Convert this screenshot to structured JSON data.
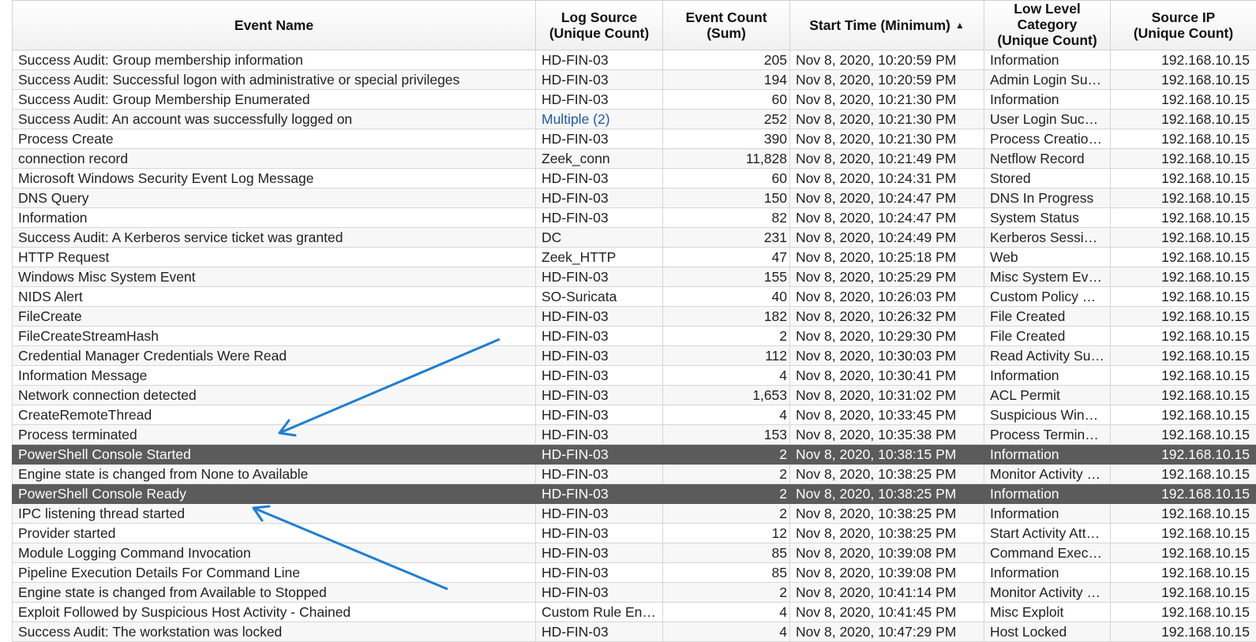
{
  "table": {
    "columns": [
      {
        "key": "event_name",
        "line1": "Event Name",
        "line2": ""
      },
      {
        "key": "log_source",
        "line1": "Log Source",
        "line2": "(Unique Count)"
      },
      {
        "key": "event_count",
        "line1": "Event Count",
        "line2": "(Sum)"
      },
      {
        "key": "start_time",
        "line1": "Start Time (Minimum)",
        "line2": "",
        "sort": "ascending"
      },
      {
        "key": "category",
        "line1": "Low Level",
        "line2": "Category",
        "line3": "(Unique Count)"
      },
      {
        "key": "source_ip",
        "line1": "Source IP",
        "line2": "(Unique Count)"
      }
    ],
    "sort_indicator": "▲",
    "rows": [
      {
        "event_name": "Success Audit: Group membership information",
        "log_source": "HD-FIN-03",
        "event_count": "205",
        "start_time": "Nov 8, 2020, 10:20:59 PM",
        "category": "Information",
        "source_ip": "192.168.10.15"
      },
      {
        "event_name": "Success Audit: Successful logon with administrative or special privileges",
        "log_source": "HD-FIN-03",
        "event_count": "194",
        "start_time": "Nov 8, 2020, 10:20:59 PM",
        "category": "Admin Login Su…",
        "source_ip": "192.168.10.15"
      },
      {
        "event_name": "Success Audit: Group Membership Enumerated",
        "log_source": "HD-FIN-03",
        "event_count": "60",
        "start_time": "Nov 8, 2020, 10:21:30 PM",
        "category": "Information",
        "source_ip": "192.168.10.15"
      },
      {
        "event_name": "Success Audit: An account was successfully logged on",
        "log_source": "Multiple (2)",
        "log_source_link": true,
        "event_count": "252",
        "start_time": "Nov 8, 2020, 10:21:30 PM",
        "category": "User Login Succ…",
        "source_ip": "192.168.10.15"
      },
      {
        "event_name": "Process Create",
        "log_source": "HD-FIN-03",
        "event_count": "390",
        "start_time": "Nov 8, 2020, 10:21:30 PM",
        "category": "Process Creatio…",
        "source_ip": "192.168.10.15"
      },
      {
        "event_name": "connection record",
        "log_source": "Zeek_conn",
        "event_count": "11,828",
        "start_time": "Nov 8, 2020, 10:21:49 PM",
        "category": "Netflow Record",
        "source_ip": "192.168.10.15"
      },
      {
        "event_name": "Microsoft Windows Security Event Log Message",
        "log_source": "HD-FIN-03",
        "event_count": "60",
        "start_time": "Nov 8, 2020, 10:24:31 PM",
        "category": "Stored",
        "source_ip": "192.168.10.15"
      },
      {
        "event_name": "DNS Query",
        "log_source": "HD-FIN-03",
        "event_count": "150",
        "start_time": "Nov 8, 2020, 10:24:47 PM",
        "category": "DNS In Progress",
        "source_ip": "192.168.10.15"
      },
      {
        "event_name": "Information",
        "log_source": "HD-FIN-03",
        "event_count": "82",
        "start_time": "Nov 8, 2020, 10:24:47 PM",
        "category": "System Status",
        "source_ip": "192.168.10.15"
      },
      {
        "event_name": "Success Audit: A Kerberos service ticket was granted",
        "log_source": "DC",
        "event_count": "231",
        "start_time": "Nov 8, 2020, 10:24:49 PM",
        "category": "Kerberos Sessio…",
        "source_ip": "192.168.10.15"
      },
      {
        "event_name": "HTTP Request",
        "log_source": "Zeek_HTTP",
        "event_count": "47",
        "start_time": "Nov 8, 2020, 10:25:18 PM",
        "category": "Web",
        "source_ip": "192.168.10.15"
      },
      {
        "event_name": "Windows Misc System Event",
        "log_source": "HD-FIN-03",
        "event_count": "155",
        "start_time": "Nov 8, 2020, 10:25:29 PM",
        "category": "Misc System Ev…",
        "source_ip": "192.168.10.15"
      },
      {
        "event_name": "NIDS Alert",
        "log_source": "SO-Suricata",
        "event_count": "40",
        "start_time": "Nov 8, 2020, 10:26:03 PM",
        "category": "Custom Policy H…",
        "source_ip": "192.168.10.15"
      },
      {
        "event_name": "FileCreate",
        "log_source": "HD-FIN-03",
        "event_count": "182",
        "start_time": "Nov 8, 2020, 10:26:32 PM",
        "category": "File Created",
        "source_ip": "192.168.10.15"
      },
      {
        "event_name": "FileCreateStreamHash",
        "log_source": "HD-FIN-03",
        "event_count": "2",
        "start_time": "Nov 8, 2020, 10:29:30 PM",
        "category": "File Created",
        "source_ip": "192.168.10.15"
      },
      {
        "event_name": "Credential Manager Credentials Were Read",
        "log_source": "HD-FIN-03",
        "event_count": "112",
        "start_time": "Nov 8, 2020, 10:30:03 PM",
        "category": "Read Activity Su…",
        "source_ip": "192.168.10.15"
      },
      {
        "event_name": "Information Message",
        "log_source": "HD-FIN-03",
        "event_count": "4",
        "start_time": "Nov 8, 2020, 10:30:41 PM",
        "category": "Information",
        "source_ip": "192.168.10.15"
      },
      {
        "event_name": "Network connection detected",
        "log_source": "HD-FIN-03",
        "event_count": "1,653",
        "start_time": "Nov 8, 2020, 10:31:02 PM",
        "category": "ACL Permit",
        "source_ip": "192.168.10.15"
      },
      {
        "event_name": "CreateRemoteThread",
        "log_source": "HD-FIN-03",
        "event_count": "4",
        "start_time": "Nov 8, 2020, 10:33:45 PM",
        "category": "Suspicious Wind…",
        "source_ip": "192.168.10.15"
      },
      {
        "event_name": "Process terminated",
        "log_source": "HD-FIN-03",
        "event_count": "153",
        "start_time": "Nov 8, 2020, 10:35:38 PM",
        "category": "Process Termin…",
        "source_ip": "192.168.10.15"
      },
      {
        "event_name": "PowerShell Console Started",
        "log_source": "HD-FIN-03",
        "event_count": "2",
        "start_time": "Nov 8, 2020, 10:38:15 PM",
        "category": "Information",
        "source_ip": "192.168.10.15",
        "selected": true
      },
      {
        "event_name": "Engine state is changed from None to Available",
        "log_source": "HD-FIN-03",
        "event_count": "2",
        "start_time": "Nov 8, 2020, 10:38:25 PM",
        "category": "Monitor Activity …",
        "source_ip": "192.168.10.15"
      },
      {
        "event_name": "PowerShell Console Ready",
        "log_source": "HD-FIN-03",
        "event_count": "2",
        "start_time": "Nov 8, 2020, 10:38:25 PM",
        "category": "Information",
        "source_ip": "192.168.10.15",
        "selected": true
      },
      {
        "event_name": "IPC listening thread started",
        "log_source": "HD-FIN-03",
        "event_count": "2",
        "start_time": "Nov 8, 2020, 10:38:25 PM",
        "category": "Information",
        "source_ip": "192.168.10.15"
      },
      {
        "event_name": "Provider started",
        "log_source": "HD-FIN-03",
        "event_count": "12",
        "start_time": "Nov 8, 2020, 10:38:25 PM",
        "category": "Start Activity Att…",
        "source_ip": "192.168.10.15"
      },
      {
        "event_name": "Module Logging Command Invocation",
        "log_source": "HD-FIN-03",
        "event_count": "85",
        "start_time": "Nov 8, 2020, 10:39:08 PM",
        "category": "Command Exec…",
        "source_ip": "192.168.10.15"
      },
      {
        "event_name": "Pipeline Execution Details For Command Line",
        "log_source": "HD-FIN-03",
        "event_count": "85",
        "start_time": "Nov 8, 2020, 10:39:08 PM",
        "category": "Information",
        "source_ip": "192.168.10.15"
      },
      {
        "event_name": "Engine state is changed from Available to Stopped",
        "log_source": "HD-FIN-03",
        "event_count": "2",
        "start_time": "Nov 8, 2020, 10:41:14 PM",
        "category": "Monitor Activity …",
        "source_ip": "192.168.10.15"
      },
      {
        "event_name": "Exploit Followed by Suspicious Host Activity - Chained",
        "log_source": "Custom Rule En…",
        "event_count": "4",
        "start_time": "Nov 8, 2020, 10:41:45 PM",
        "category": "Misc Exploit",
        "source_ip": "192.168.10.15"
      },
      {
        "event_name": "Success Audit: The workstation was locked",
        "log_source": "HD-FIN-03",
        "event_count": "4",
        "start_time": "Nov 8, 2020, 10:47:29 PM",
        "category": "Host Locked",
        "source_ip": "192.168.10.15"
      }
    ]
  },
  "theme": {
    "selected_row_bg": "#5b5b5b",
    "link_color": "#1d5aa8",
    "annotation_arrow_color": "#1e7fd2"
  },
  "annotations": {
    "arrows": [
      {
        "points_to_row": "PowerShell Console Started",
        "icon": "arrow-icon"
      },
      {
        "points_to_row": "PowerShell Console Ready",
        "icon": "arrow-icon"
      }
    ]
  }
}
